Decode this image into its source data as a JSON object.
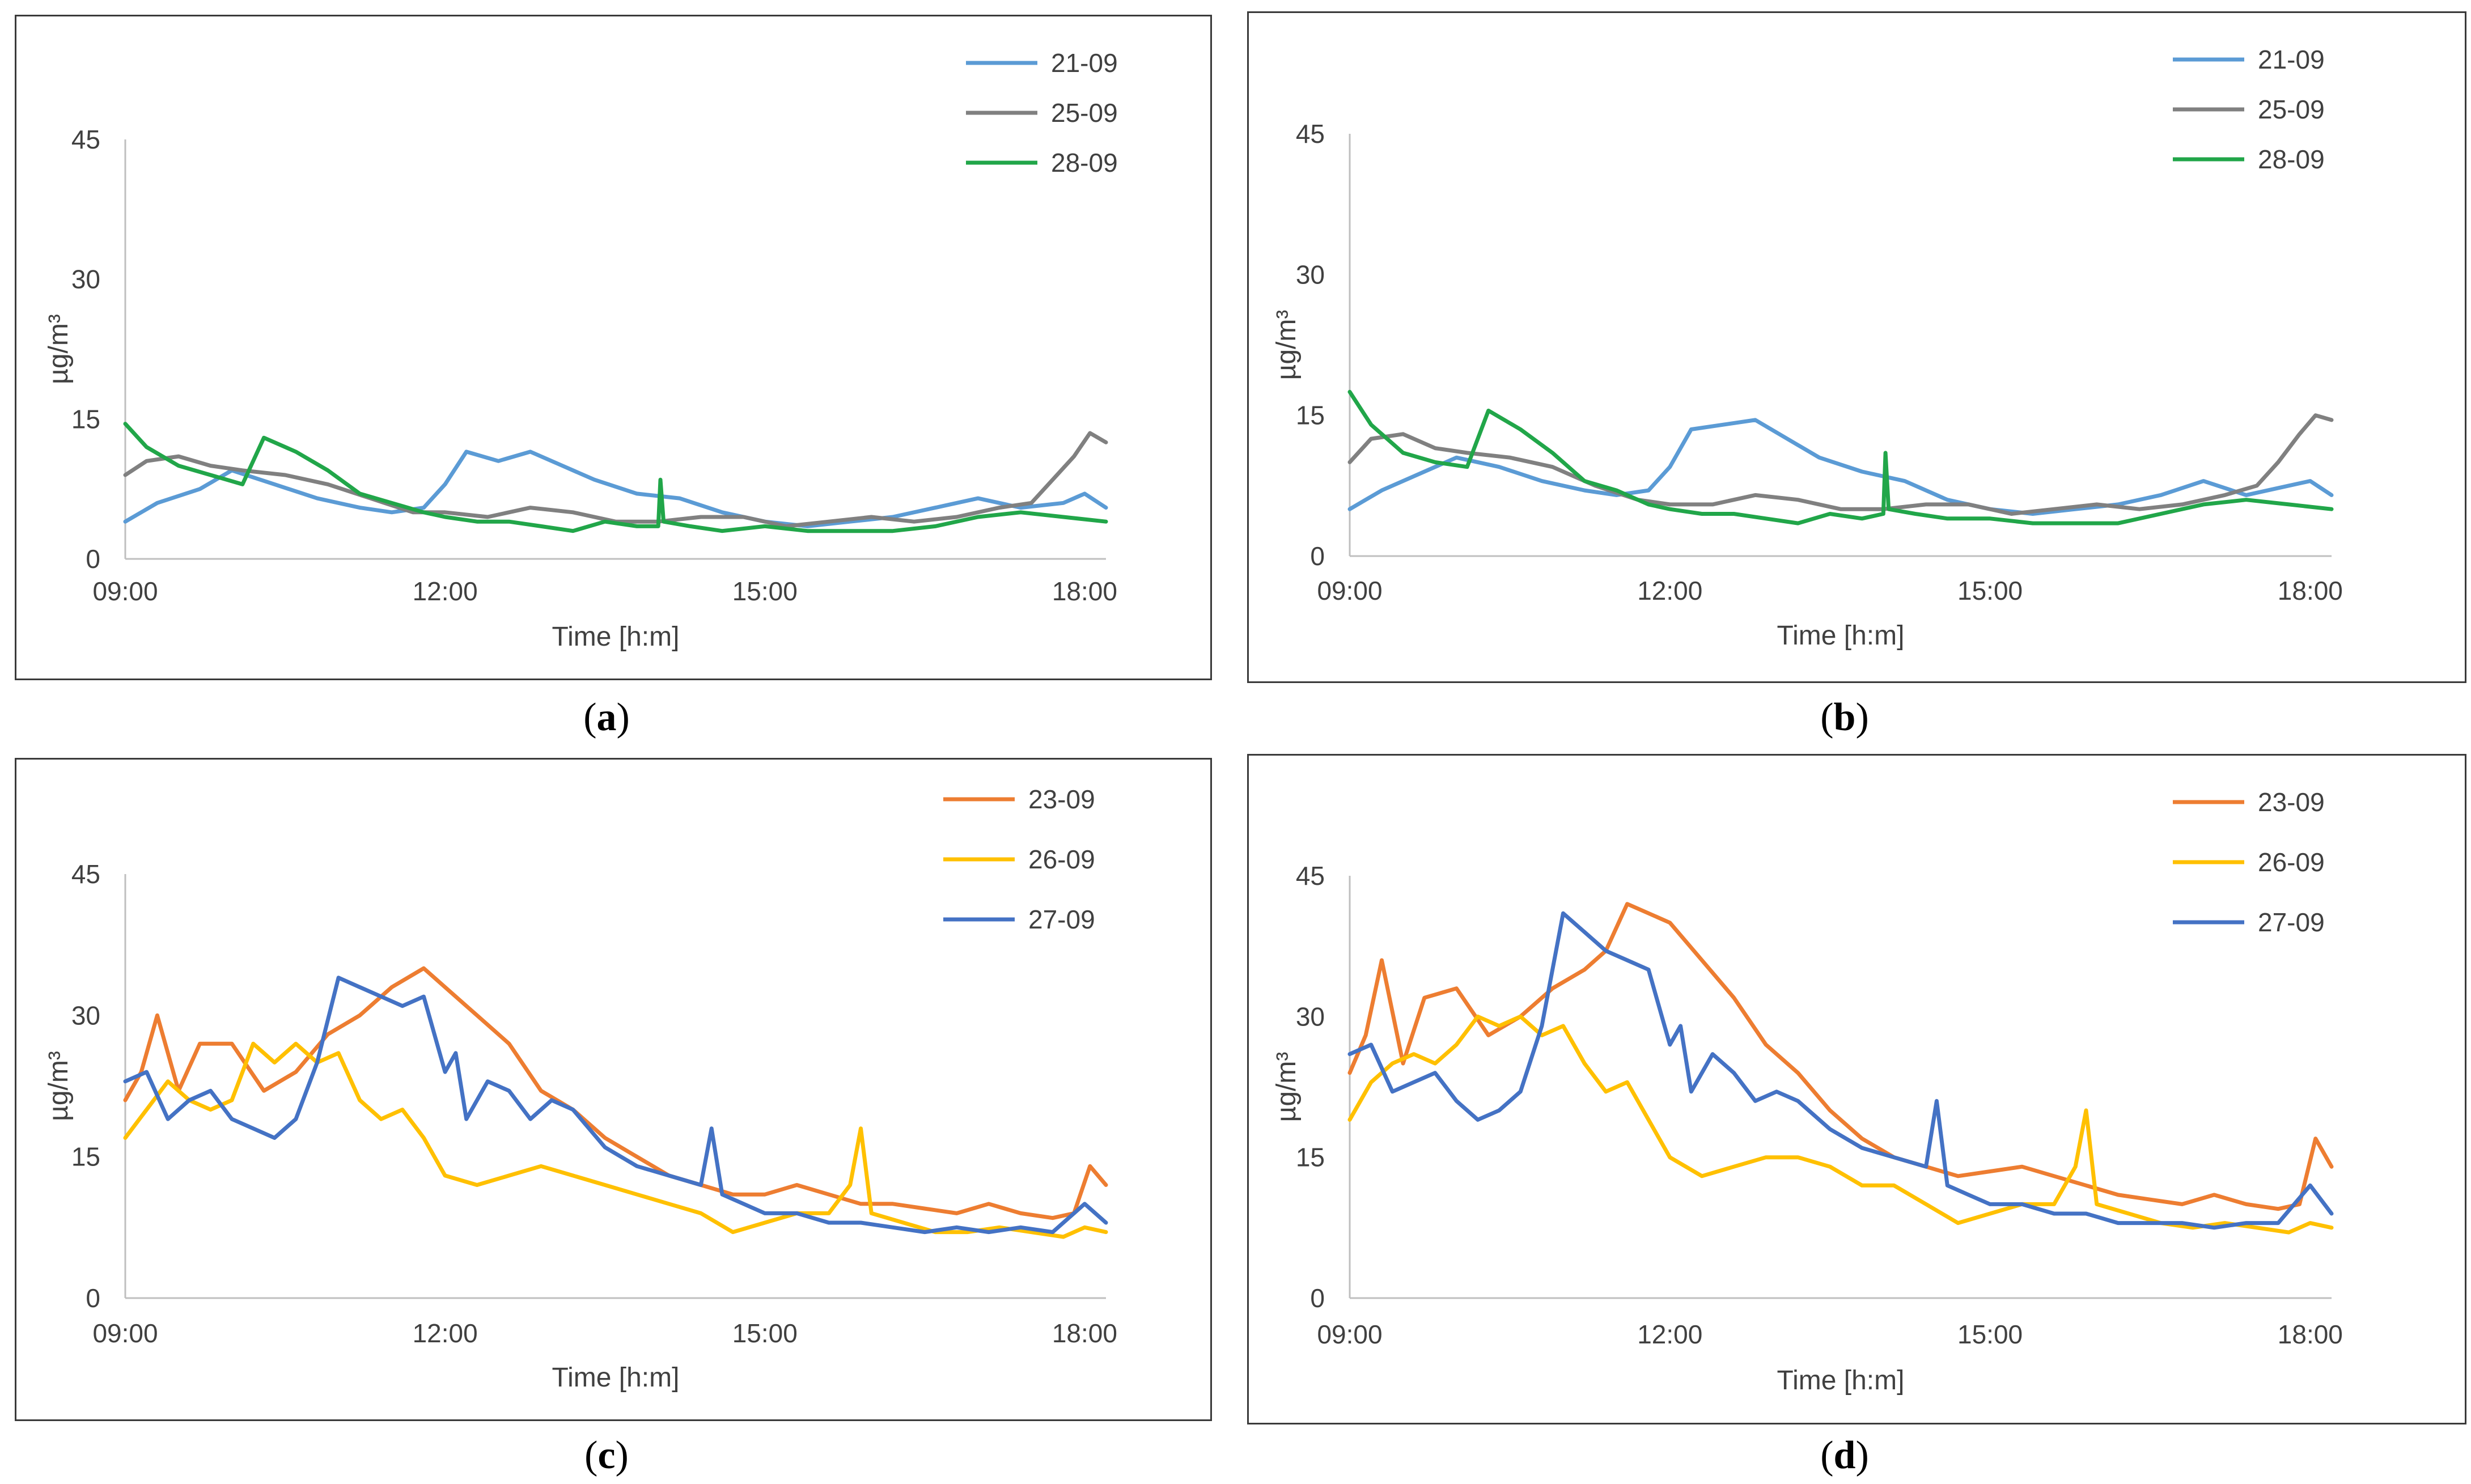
{
  "chart_data": [
    {
      "id": "a",
      "type": "line",
      "caption_letter": "a",
      "xlabel": "Time [h:m]",
      "ylabel": "µg/m³",
      "ylim": [
        0,
        45
      ],
      "yticks": [
        0,
        15,
        30,
        45
      ],
      "xlim": [
        9,
        18.2
      ],
      "xticks": [
        {
          "v": 9,
          "label": "09:00"
        },
        {
          "v": 12,
          "label": "12:00"
        },
        {
          "v": 15,
          "label": "15:00"
        },
        {
          "v": 18,
          "label": "18:00"
        }
      ],
      "legend_position": "top-right",
      "series": [
        {
          "name": "21-09",
          "color": "#5b9bd5",
          "x": [
            9.0,
            9.3,
            9.7,
            10.0,
            10.4,
            10.8,
            11.2,
            11.5,
            11.8,
            12.0,
            12.2,
            12.5,
            12.8,
            13.1,
            13.4,
            13.8,
            14.2,
            14.6,
            15.0,
            15.4,
            15.8,
            16.2,
            16.6,
            17.0,
            17.4,
            17.8,
            18.0,
            18.2
          ],
          "y": [
            4,
            6,
            7.5,
            9.5,
            8,
            6.5,
            5.5,
            5,
            5.5,
            8,
            11.5,
            10.5,
            11.5,
            10,
            8.5,
            7,
            6.5,
            5,
            4,
            3.5,
            4,
            4.5,
            5.5,
            6.5,
            5.5,
            6,
            7,
            5.5
          ]
        },
        {
          "name": "25-09",
          "color": "#808080",
          "x": [
            9.0,
            9.2,
            9.5,
            9.8,
            10.1,
            10.5,
            10.9,
            11.3,
            11.7,
            12.0,
            12.4,
            12.8,
            13.2,
            13.6,
            14.0,
            14.4,
            14.8,
            15.2,
            15.6,
            16.0,
            16.4,
            16.8,
            17.2,
            17.5,
            17.7,
            17.9,
            18.05,
            18.2
          ],
          "y": [
            9,
            10.5,
            11,
            10,
            9.5,
            9,
            8,
            6.5,
            5,
            5,
            4.5,
            5.5,
            5,
            4,
            4,
            4.5,
            4.5,
            3.5,
            4,
            4.5,
            4,
            4.5,
            5.5,
            6,
            8.5,
            11,
            13.5,
            12.5
          ]
        },
        {
          "name": "28-09",
          "color": "#21a649",
          "x": [
            9.0,
            9.2,
            9.5,
            9.8,
            10.1,
            10.3,
            10.6,
            10.9,
            11.2,
            11.5,
            11.8,
            12.0,
            12.3,
            12.6,
            12.9,
            13.2,
            13.5,
            13.8,
            14.0,
            14.02,
            14.05,
            14.3,
            14.6,
            15.0,
            15.4,
            15.8,
            16.2,
            16.6,
            17.0,
            17.4,
            17.8,
            18.2
          ],
          "y": [
            14.5,
            12,
            10,
            9,
            8,
            13,
            11.5,
            9.5,
            7,
            6,
            5,
            4.5,
            4,
            4,
            3.5,
            3,
            4,
            3.5,
            3.5,
            8.5,
            4,
            3.5,
            3,
            3.5,
            3,
            3,
            3,
            3.5,
            4.5,
            5,
            4.5,
            4
          ]
        }
      ]
    },
    {
      "id": "b",
      "type": "line",
      "caption_letter": "b",
      "xlabel": "Time [h:m]",
      "ylabel": "µg/m³",
      "ylim": [
        0,
        45
      ],
      "yticks": [
        0,
        15,
        30,
        45
      ],
      "xlim": [
        9,
        18.2
      ],
      "xticks": [
        {
          "v": 9,
          "label": "09:00"
        },
        {
          "v": 12,
          "label": "12:00"
        },
        {
          "v": 15,
          "label": "15:00"
        },
        {
          "v": 18,
          "label": "18:00"
        }
      ],
      "legend_position": "top-right",
      "series": [
        {
          "name": "21-09",
          "color": "#5b9bd5",
          "x": [
            9.0,
            9.3,
            9.7,
            10.0,
            10.4,
            10.8,
            11.2,
            11.5,
            11.8,
            12.0,
            12.2,
            12.5,
            12.8,
            13.1,
            13.4,
            13.8,
            14.2,
            14.6,
            15.0,
            15.4,
            15.8,
            16.2,
            16.6,
            17.0,
            17.4,
            17.8,
            18.0,
            18.2
          ],
          "y": [
            5,
            7,
            9,
            10.5,
            9.5,
            8,
            7,
            6.5,
            7,
            9.5,
            13.5,
            14,
            14.5,
            12.5,
            10.5,
            9,
            8,
            6,
            5,
            4.5,
            5,
            5.5,
            6.5,
            8,
            6.5,
            7.5,
            8,
            6.5
          ]
        },
        {
          "name": "25-09",
          "color": "#808080",
          "x": [
            9.0,
            9.2,
            9.5,
            9.8,
            10.1,
            10.5,
            10.9,
            11.3,
            11.7,
            12.0,
            12.4,
            12.8,
            13.2,
            13.6,
            14.0,
            14.4,
            14.8,
            15.2,
            15.6,
            16.0,
            16.4,
            16.8,
            17.2,
            17.5,
            17.7,
            17.9,
            18.05,
            18.2
          ],
          "y": [
            10,
            12.5,
            13,
            11.5,
            11,
            10.5,
            9.5,
            7.5,
            6,
            5.5,
            5.5,
            6.5,
            6,
            5,
            5,
            5.5,
            5.5,
            4.5,
            5,
            5.5,
            5,
            5.5,
            6.5,
            7.5,
            10,
            13,
            15,
            14.5
          ]
        },
        {
          "name": "28-09",
          "color": "#21a649",
          "x": [
            9.0,
            9.2,
            9.5,
            9.8,
            10.1,
            10.3,
            10.6,
            10.9,
            11.2,
            11.5,
            11.8,
            12.0,
            12.3,
            12.6,
            12.9,
            13.2,
            13.5,
            13.8,
            14.0,
            14.02,
            14.05,
            14.3,
            14.6,
            15.0,
            15.4,
            15.8,
            16.2,
            16.6,
            17.0,
            17.4,
            17.8,
            18.2
          ],
          "y": [
            17.5,
            14,
            11,
            10,
            9.5,
            15.5,
            13.5,
            11,
            8,
            7,
            5.5,
            5,
            4.5,
            4.5,
            4,
            3.5,
            4.5,
            4,
            4.5,
            11,
            5,
            4.5,
            4,
            4,
            3.5,
            3.5,
            3.5,
            4.5,
            5.5,
            6,
            5.5,
            5
          ]
        }
      ]
    },
    {
      "id": "c",
      "type": "line",
      "caption_letter": "c",
      "xlabel": "Time [h:m]",
      "ylabel": "µg/m³",
      "ylim": [
        0,
        45
      ],
      "yticks": [
        0,
        15,
        30,
        45
      ],
      "xlim": [
        9,
        18.2
      ],
      "xticks": [
        {
          "v": 9,
          "label": "09:00"
        },
        {
          "v": 12,
          "label": "12:00"
        },
        {
          "v": 15,
          "label": "15:00"
        },
        {
          "v": 18,
          "label": "18:00"
        }
      ],
      "legend_position": "top-right",
      "series": [
        {
          "name": "23-09",
          "color": "#ed7d31",
          "x": [
            9.0,
            9.15,
            9.3,
            9.5,
            9.7,
            10.0,
            10.3,
            10.6,
            10.9,
            11.2,
            11.5,
            11.8,
            12.0,
            12.3,
            12.6,
            12.9,
            13.2,
            13.5,
            13.8,
            14.1,
            14.4,
            14.7,
            15.0,
            15.3,
            15.6,
            15.9,
            16.2,
            16.5,
            16.8,
            17.1,
            17.4,
            17.7,
            17.9,
            18.05,
            18.2
          ],
          "y": [
            21,
            24,
            30,
            22,
            27,
            27,
            22,
            24,
            28,
            30,
            33,
            35,
            33,
            30,
            27,
            22,
            20,
            17,
            15,
            13,
            12,
            11,
            11,
            12,
            11,
            10,
            10,
            9.5,
            9,
            10,
            9,
            8.5,
            9,
            14,
            12
          ]
        },
        {
          "name": "26-09",
          "color": "#ffc000",
          "x": [
            9.0,
            9.2,
            9.4,
            9.6,
            9.8,
            10.0,
            10.2,
            10.4,
            10.6,
            10.8,
            11.0,
            11.2,
            11.4,
            11.6,
            11.8,
            12.0,
            12.3,
            12.6,
            12.9,
            13.2,
            13.5,
            13.8,
            14.1,
            14.4,
            14.7,
            15.0,
            15.3,
            15.6,
            15.8,
            15.9,
            16.0,
            16.3,
            16.6,
            16.9,
            17.2,
            17.5,
            17.8,
            18.0,
            18.2
          ],
          "y": [
            17,
            20,
            23,
            21,
            20,
            21,
            27,
            25,
            27,
            25,
            26,
            21,
            19,
            20,
            17,
            13,
            12,
            13,
            14,
            13,
            12,
            11,
            10,
            9,
            7,
            8,
            9,
            9,
            12,
            18,
            9,
            8,
            7,
            7,
            7.5,
            7,
            6.5,
            7.5,
            7
          ]
        },
        {
          "name": "27-09",
          "color": "#4472c4",
          "x": [
            9.0,
            9.2,
            9.4,
            9.6,
            9.8,
            10.0,
            10.2,
            10.4,
            10.6,
            10.8,
            11.0,
            11.2,
            11.4,
            11.6,
            11.8,
            12.0,
            12.1,
            12.2,
            12.4,
            12.6,
            12.8,
            13.0,
            13.2,
            13.5,
            13.8,
            14.1,
            14.4,
            14.5,
            14.6,
            14.8,
            15.0,
            15.3,
            15.6,
            15.9,
            16.2,
            16.5,
            16.8,
            17.1,
            17.4,
            17.7,
            18.0,
            18.2
          ],
          "y": [
            23,
            24,
            19,
            21,
            22,
            19,
            18,
            17,
            19,
            25,
            34,
            33,
            32,
            31,
            32,
            24,
            26,
            19,
            23,
            22,
            19,
            21,
            20,
            16,
            14,
            13,
            12,
            18,
            11,
            10,
            9,
            9,
            8,
            8,
            7.5,
            7,
            7.5,
            7,
            7.5,
            7,
            10,
            8
          ]
        }
      ]
    },
    {
      "id": "d",
      "type": "line",
      "caption_letter": "d",
      "xlabel": "Time [h:m]",
      "ylabel": "µg/m³",
      "ylim": [
        0,
        45
      ],
      "yticks": [
        0,
        15,
        30,
        45
      ],
      "xlim": [
        9,
        18.2
      ],
      "xticks": [
        {
          "v": 9,
          "label": "09:00"
        },
        {
          "v": 12,
          "label": "12:00"
        },
        {
          "v": 15,
          "label": "15:00"
        },
        {
          "v": 18,
          "label": "18:00"
        }
      ],
      "legend_position": "top-right",
      "series": [
        {
          "name": "23-09",
          "color": "#ed7d31",
          "x": [
            9.0,
            9.15,
            9.3,
            9.5,
            9.7,
            10.0,
            10.3,
            10.6,
            10.9,
            11.2,
            11.4,
            11.6,
            11.8,
            12.0,
            12.3,
            12.6,
            12.9,
            13.2,
            13.5,
            13.8,
            14.1,
            14.4,
            14.7,
            15.0,
            15.3,
            15.6,
            15.9,
            16.2,
            16.5,
            16.8,
            17.1,
            17.4,
            17.7,
            17.9,
            18.05,
            18.2
          ],
          "y": [
            24,
            28,
            36,
            25,
            32,
            33,
            28,
            30,
            33,
            35,
            37,
            42,
            41,
            40,
            36,
            32,
            27,
            24,
            20,
            17,
            15,
            14,
            13,
            13.5,
            14,
            13,
            12,
            11,
            10.5,
            10,
            11,
            10,
            9.5,
            10,
            17,
            14
          ]
        },
        {
          "name": "26-09",
          "color": "#ffc000",
          "x": [
            9.0,
            9.2,
            9.4,
            9.6,
            9.8,
            10.0,
            10.2,
            10.4,
            10.6,
            10.8,
            11.0,
            11.2,
            11.4,
            11.6,
            11.8,
            12.0,
            12.3,
            12.6,
            12.9,
            13.2,
            13.5,
            13.8,
            14.1,
            14.4,
            14.7,
            15.0,
            15.3,
            15.6,
            15.8,
            15.9,
            16.0,
            16.3,
            16.6,
            16.9,
            17.2,
            17.5,
            17.8,
            18.0,
            18.2
          ],
          "y": [
            19,
            23,
            25,
            26,
            25,
            27,
            30,
            29,
            30,
            28,
            29,
            25,
            22,
            23,
            19,
            15,
            13,
            14,
            15,
            15,
            14,
            12,
            12,
            10,
            8,
            9,
            10,
            10,
            14,
            20,
            10,
            9,
            8,
            7.5,
            8,
            7.5,
            7,
            8,
            7.5
          ]
        },
        {
          "name": "27-09",
          "color": "#4472c4",
          "x": [
            9.0,
            9.2,
            9.4,
            9.6,
            9.8,
            10.0,
            10.2,
            10.4,
            10.6,
            10.8,
            11.0,
            11.2,
            11.4,
            11.6,
            11.8,
            12.0,
            12.1,
            12.2,
            12.4,
            12.6,
            12.8,
            13.0,
            13.2,
            13.5,
            13.8,
            14.1,
            14.4,
            14.5,
            14.6,
            14.8,
            15.0,
            15.3,
            15.6,
            15.9,
            16.2,
            16.5,
            16.8,
            17.1,
            17.4,
            17.7,
            18.0,
            18.2
          ],
          "y": [
            26,
            27,
            22,
            23,
            24,
            21,
            19,
            20,
            22,
            29,
            41,
            39,
            37,
            36,
            35,
            27,
            29,
            22,
            26,
            24,
            21,
            22,
            21,
            18,
            16,
            15,
            14,
            21,
            12,
            11,
            10,
            10,
            9,
            9,
            8,
            8,
            8,
            7.5,
            8,
            8,
            12,
            9
          ]
        }
      ]
    }
  ]
}
